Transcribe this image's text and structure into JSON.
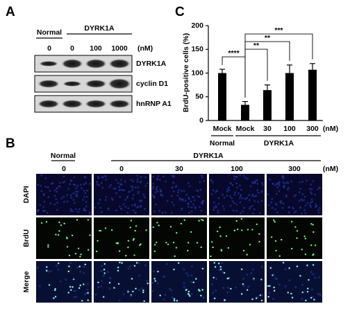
{
  "panel_a": {
    "label": "A",
    "groups": [
      "Normal",
      "DYRK1A"
    ],
    "doses": [
      "0",
      "0",
      "100",
      "1000"
    ],
    "unit": "(nM)",
    "rows": [
      "DYRK1A",
      "cyclin D1",
      "hnRNP A1"
    ]
  },
  "panel_b": {
    "label": "B",
    "groups": [
      "Normal",
      "DYRK1A"
    ],
    "doses": [
      "0",
      "0",
      "30",
      "100",
      "300"
    ],
    "unit": "(nM)",
    "rows": [
      "DAPI",
      "BrdU",
      "Merge"
    ]
  },
  "chart_data": {
    "type": "bar",
    "panel_label": "C",
    "y_label": "BrdU-positive cells (%)",
    "categories": [
      "Mock",
      "Mock",
      "30",
      "100",
      "300"
    ],
    "groups": [
      "Normal",
      "DYRK1A"
    ],
    "unit": "(nM)",
    "values": [
      100,
      33,
      64,
      100,
      107
    ],
    "errors": [
      8,
      7,
      11,
      17,
      13
    ],
    "color": "#000000",
    "ylim": [
      0,
      200
    ],
    "yticks": [
      0,
      50,
      100,
      150,
      200
    ],
    "significance": [
      {
        "pair": [
          0,
          1
        ],
        "label": "****"
      },
      {
        "pair": [
          1,
          2
        ],
        "label": "**"
      },
      {
        "pair": [
          1,
          3
        ],
        "label": "**"
      },
      {
        "pair": [
          1,
          4
        ],
        "label": "***"
      }
    ]
  }
}
